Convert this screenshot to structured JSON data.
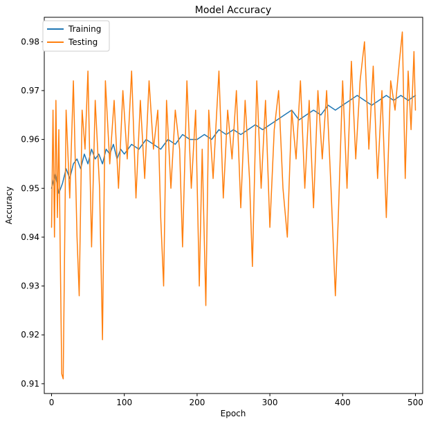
{
  "chart_data": {
    "type": "line",
    "title": "Model Accuracy",
    "xlabel": "Epoch",
    "ylabel": "Accuracy",
    "xlim": [
      -10,
      510
    ],
    "ylim": [
      0.908,
      0.985
    ],
    "xticks": [
      0,
      100,
      200,
      300,
      400,
      500
    ],
    "yticks": [
      0.91,
      0.92,
      0.93,
      0.94,
      0.95,
      0.96,
      0.97,
      0.98
    ],
    "grid": false,
    "legend_position": "top-left",
    "series": [
      {
        "name": "Training",
        "color": "#1f77b4",
        "points": [
          [
            0,
            0.95
          ],
          [
            5,
            0.953
          ],
          [
            10,
            0.949
          ],
          [
            15,
            0.951
          ],
          [
            20,
            0.954
          ],
          [
            25,
            0.952
          ],
          [
            30,
            0.955
          ],
          [
            35,
            0.956
          ],
          [
            40,
            0.954
          ],
          [
            45,
            0.957
          ],
          [
            50,
            0.955
          ],
          [
            55,
            0.958
          ],
          [
            60,
            0.956
          ],
          [
            65,
            0.957
          ],
          [
            70,
            0.955
          ],
          [
            75,
            0.958
          ],
          [
            80,
            0.957
          ],
          [
            85,
            0.959
          ],
          [
            90,
            0.956
          ],
          [
            95,
            0.958
          ],
          [
            100,
            0.957
          ],
          [
            110,
            0.959
          ],
          [
            120,
            0.958
          ],
          [
            130,
            0.96
          ],
          [
            140,
            0.959
          ],
          [
            150,
            0.958
          ],
          [
            160,
            0.96
          ],
          [
            170,
            0.959
          ],
          [
            180,
            0.961
          ],
          [
            190,
            0.96
          ],
          [
            200,
            0.96
          ],
          [
            210,
            0.961
          ],
          [
            220,
            0.96
          ],
          [
            230,
            0.962
          ],
          [
            240,
            0.961
          ],
          [
            250,
            0.962
          ],
          [
            260,
            0.961
          ],
          [
            270,
            0.962
          ],
          [
            280,
            0.963
          ],
          [
            290,
            0.962
          ],
          [
            300,
            0.963
          ],
          [
            310,
            0.964
          ],
          [
            320,
            0.965
          ],
          [
            330,
            0.966
          ],
          [
            340,
            0.964
          ],
          [
            350,
            0.965
          ],
          [
            360,
            0.966
          ],
          [
            370,
            0.965
          ],
          [
            380,
            0.967
          ],
          [
            390,
            0.966
          ],
          [
            400,
            0.967
          ],
          [
            410,
            0.968
          ],
          [
            420,
            0.969
          ],
          [
            430,
            0.968
          ],
          [
            440,
            0.967
          ],
          [
            450,
            0.968
          ],
          [
            460,
            0.969
          ],
          [
            470,
            0.968
          ],
          [
            480,
            0.969
          ],
          [
            490,
            0.968
          ],
          [
            500,
            0.969
          ]
        ]
      },
      {
        "name": "Testing",
        "color": "#ff7f0e",
        "points": [
          [
            0,
            0.942
          ],
          [
            2,
            0.966
          ],
          [
            4,
            0.94
          ],
          [
            6,
            0.968
          ],
          [
            8,
            0.944
          ],
          [
            10,
            0.962
          ],
          [
            12,
            0.936
          ],
          [
            14,
            0.912
          ],
          [
            16,
            0.911
          ],
          [
            18,
            0.938
          ],
          [
            20,
            0.966
          ],
          [
            25,
            0.948
          ],
          [
            30,
            0.972
          ],
          [
            35,
            0.94
          ],
          [
            38,
            0.928
          ],
          [
            42,
            0.966
          ],
          [
            46,
            0.958
          ],
          [
            50,
            0.974
          ],
          [
            55,
            0.938
          ],
          [
            60,
            0.968
          ],
          [
            66,
            0.95
          ],
          [
            70,
            0.919
          ],
          [
            74,
            0.972
          ],
          [
            80,
            0.955
          ],
          [
            86,
            0.968
          ],
          [
            92,
            0.95
          ],
          [
            98,
            0.97
          ],
          [
            104,
            0.956
          ],
          [
            110,
            0.974
          ],
          [
            116,
            0.948
          ],
          [
            122,
            0.968
          ],
          [
            128,
            0.952
          ],
          [
            134,
            0.972
          ],
          [
            140,
            0.958
          ],
          [
            146,
            0.966
          ],
          [
            150,
            0.944
          ],
          [
            154,
            0.93
          ],
          [
            158,
            0.968
          ],
          [
            164,
            0.95
          ],
          [
            170,
            0.966
          ],
          [
            176,
            0.958
          ],
          [
            180,
            0.938
          ],
          [
            186,
            0.972
          ],
          [
            192,
            0.95
          ],
          [
            198,
            0.966
          ],
          [
            203,
            0.93
          ],
          [
            207,
            0.958
          ],
          [
            212,
            0.926
          ],
          [
            216,
            0.966
          ],
          [
            222,
            0.952
          ],
          [
            230,
            0.974
          ],
          [
            236,
            0.948
          ],
          [
            242,
            0.966
          ],
          [
            248,
            0.956
          ],
          [
            254,
            0.97
          ],
          [
            260,
            0.946
          ],
          [
            266,
            0.968
          ],
          [
            272,
            0.952
          ],
          [
            276,
            0.934
          ],
          [
            282,
            0.972
          ],
          [
            288,
            0.95
          ],
          [
            294,
            0.968
          ],
          [
            300,
            0.942
          ],
          [
            306,
            0.962
          ],
          [
            312,
            0.97
          ],
          [
            318,
            0.95
          ],
          [
            324,
            0.94
          ],
          [
            330,
            0.966
          ],
          [
            336,
            0.956
          ],
          [
            342,
            0.972
          ],
          [
            348,
            0.95
          ],
          [
            354,
            0.968
          ],
          [
            360,
            0.946
          ],
          [
            366,
            0.97
          ],
          [
            372,
            0.956
          ],
          [
            378,
            0.97
          ],
          [
            384,
            0.95
          ],
          [
            390,
            0.928
          ],
          [
            394,
            0.944
          ],
          [
            400,
            0.972
          ],
          [
            406,
            0.95
          ],
          [
            412,
            0.976
          ],
          [
            418,
            0.956
          ],
          [
            424,
            0.972
          ],
          [
            430,
            0.98
          ],
          [
            436,
            0.958
          ],
          [
            442,
            0.975
          ],
          [
            448,
            0.952
          ],
          [
            454,
            0.97
          ],
          [
            460,
            0.944
          ],
          [
            466,
            0.972
          ],
          [
            472,
            0.966
          ],
          [
            478,
            0.976
          ],
          [
            482,
            0.982
          ],
          [
            486,
            0.952
          ],
          [
            490,
            0.974
          ],
          [
            494,
            0.962
          ],
          [
            498,
            0.978
          ],
          [
            500,
            0.966
          ]
        ]
      }
    ]
  }
}
